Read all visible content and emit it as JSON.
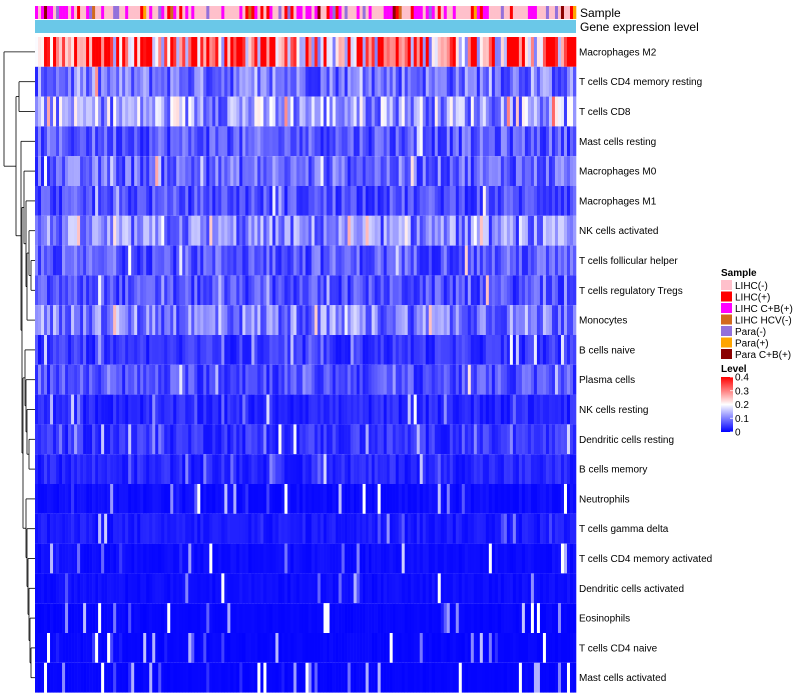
{
  "chart_data": {
    "type": "heatmap",
    "annotation_labels": [
      "Sample",
      "Gene expression level"
    ],
    "row_labels": [
      "Macrophages M2",
      "T cells CD4 memory resting",
      "T cells CD8",
      "Mast cells resting",
      "Macrophages M0",
      "Macrophages M1",
      "NK cells activated",
      "T cells follicular helper",
      "T cells regulatory  Tregs",
      "Monocytes",
      "B cells naive",
      "Plasma cells",
      "NK cells resting",
      "Dendritic cells resting",
      "B cells memory",
      "Neutrophils",
      "T cells gamma delta",
      "T cells CD4 memory activated",
      "Dendritic cells activated",
      "Eosinophils",
      "T cells CD4 naive",
      "Mast cells activated"
    ],
    "row_mean_level": [
      0.3,
      0.09,
      0.13,
      0.07,
      0.08,
      0.06,
      0.1,
      0.07,
      0.06,
      0.1,
      0.04,
      0.06,
      0.03,
      0.04,
      0.03,
      0.01,
      0.02,
      0.01,
      0.01,
      0.005,
      0.005,
      0.004
    ],
    "value_range": [
      0,
      0.4
    ],
    "legend": {
      "sample_title": "Sample",
      "sample_items": [
        {
          "label": "LIHC(-)",
          "color": "#ffc0cb"
        },
        {
          "label": "LIHC(+)",
          "color": "#ff0000"
        },
        {
          "label": "LIHC C+B(+)",
          "color": "#ff00ff"
        },
        {
          "label": "LIHC HCV(-)",
          "color": "#d2691e"
        },
        {
          "label": "Para(-)",
          "color": "#9370db"
        },
        {
          "label": "Para(+)",
          "color": "#ffa500"
        },
        {
          "label": "Para C+B(+)",
          "color": "#8b0000"
        }
      ],
      "level_title": "Level",
      "level_ticks": [
        "0.4",
        "0.3",
        "0.2",
        "0.1",
        "0"
      ],
      "level_colors": [
        "#0000ff",
        "#ffffff",
        "#ff0000"
      ]
    },
    "gene_expression_color": "#6ac8e8",
    "n_samples": 180
  }
}
